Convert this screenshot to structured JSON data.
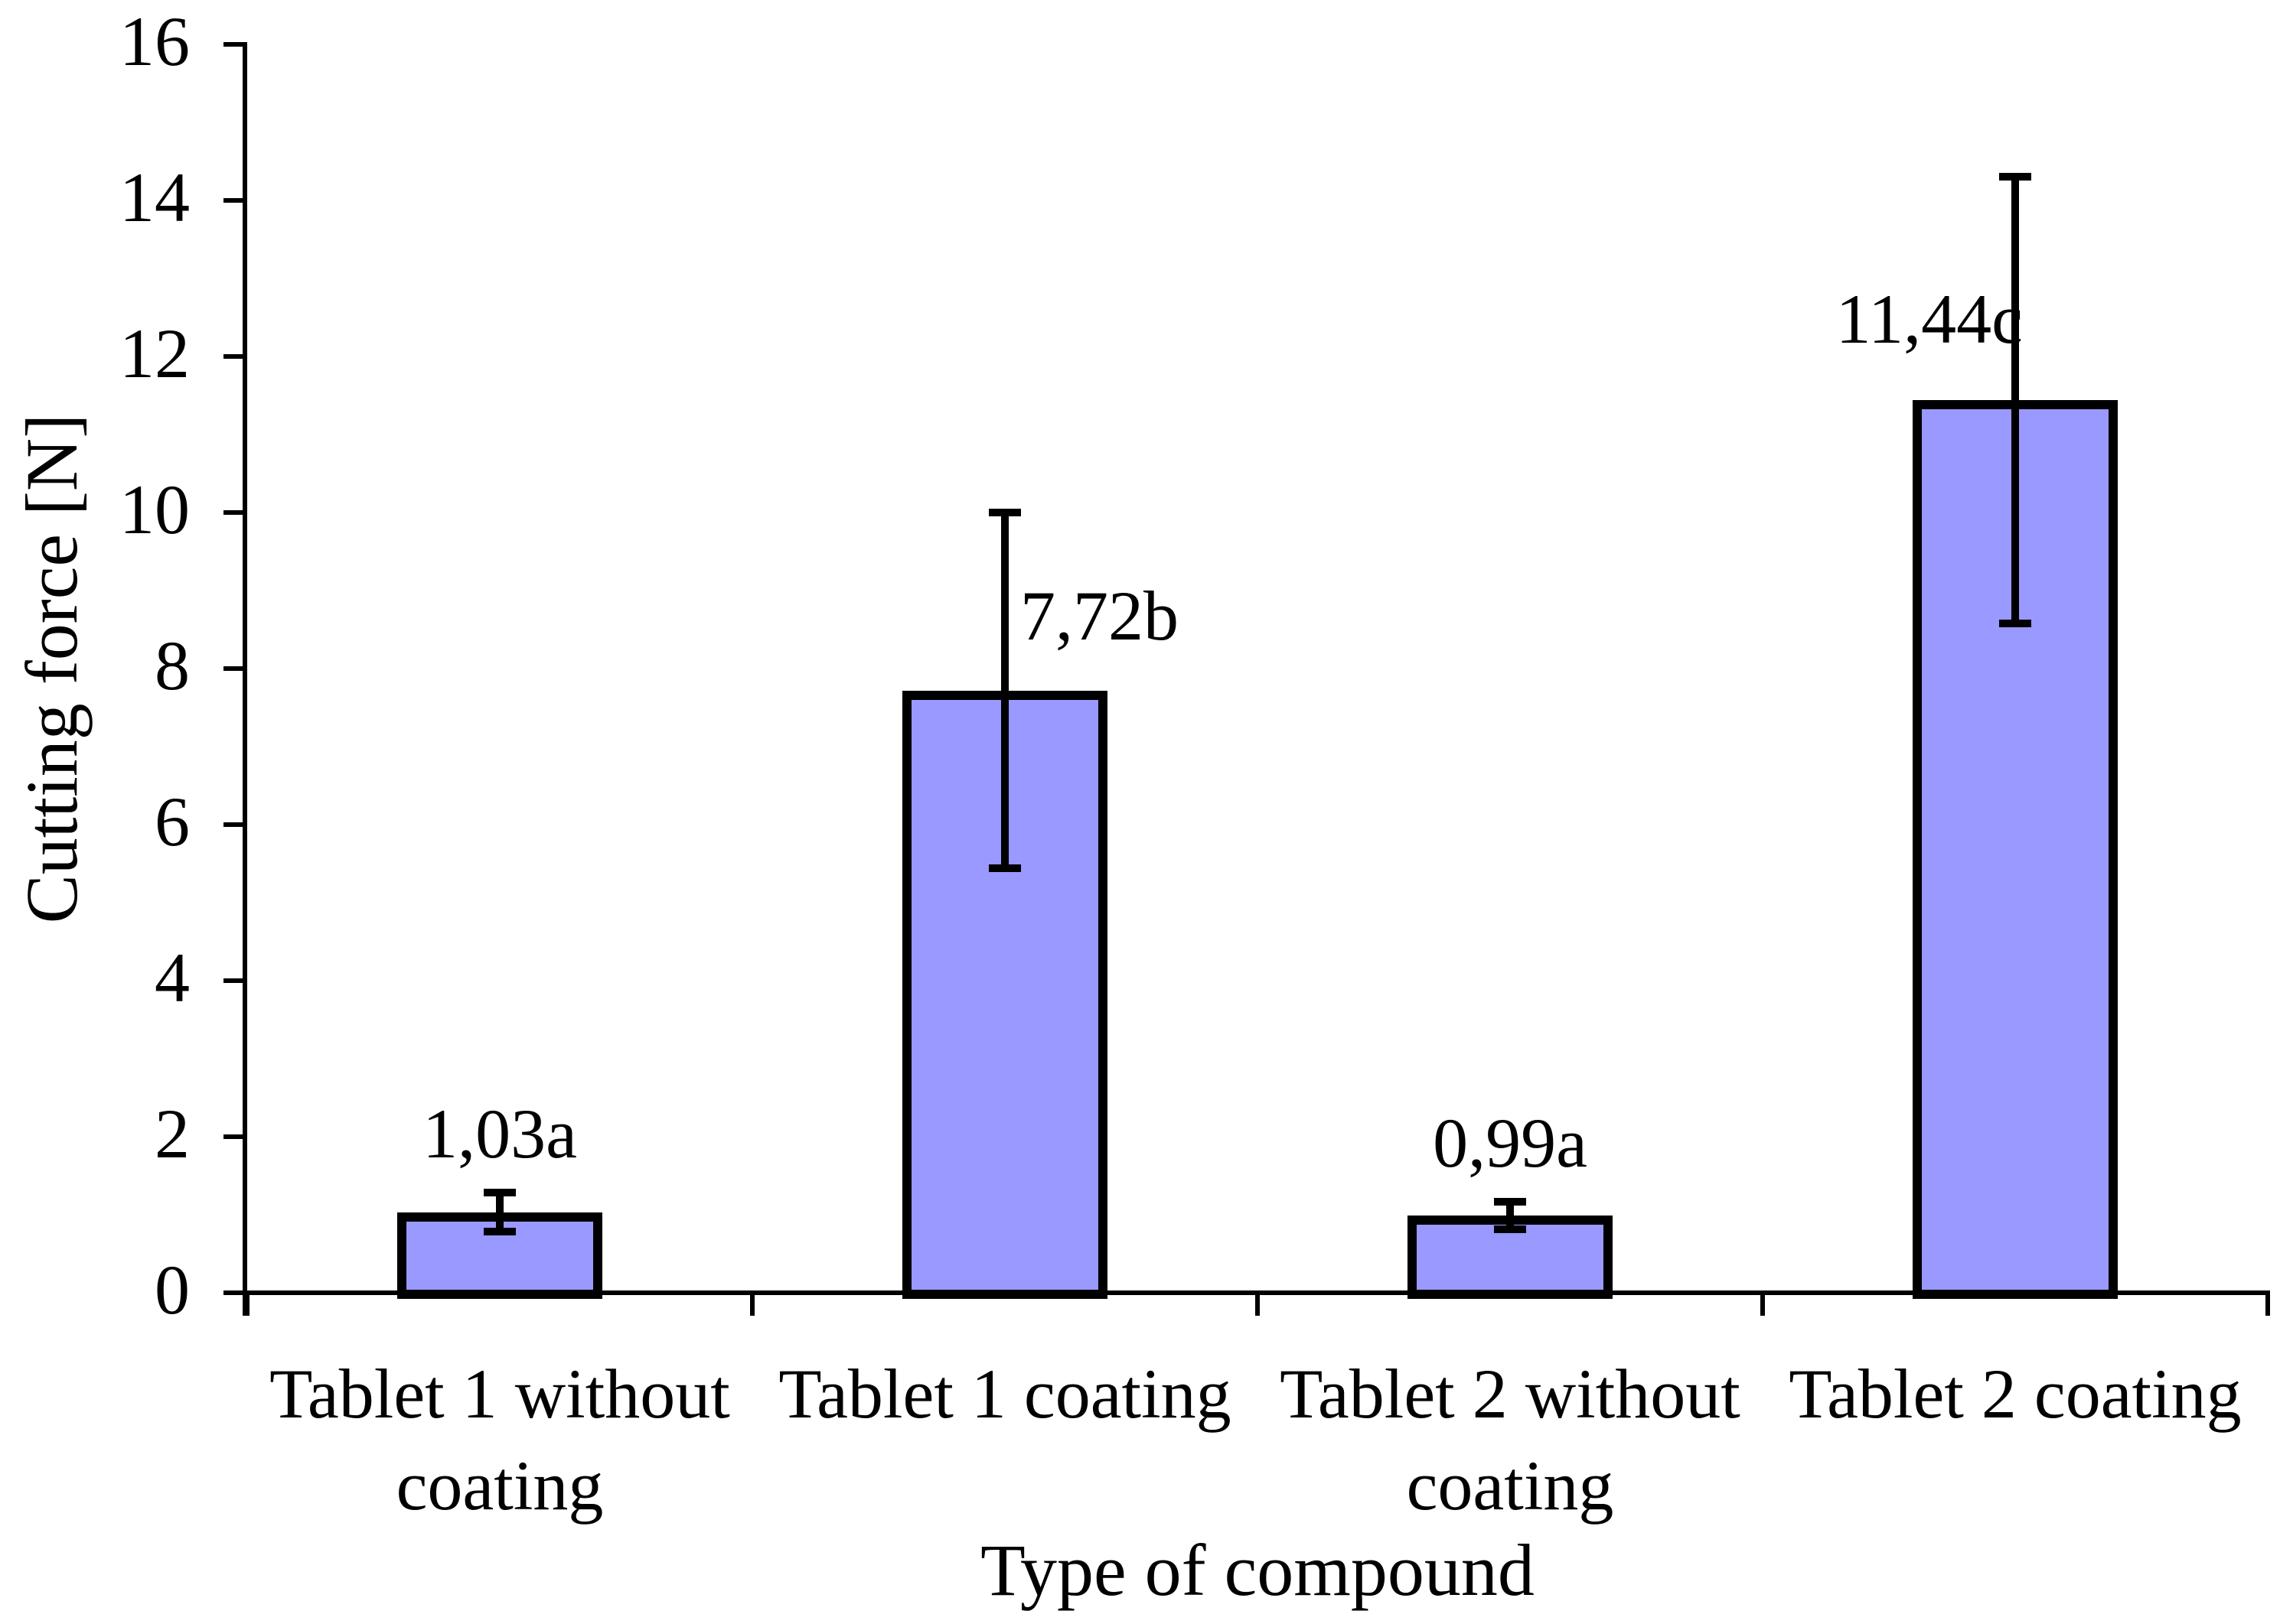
{
  "chart_data": {
    "type": "bar",
    "title": "",
    "xlabel": "Type of compound",
    "ylabel": "Cutting force [N]",
    "ylim": [
      0,
      16
    ],
    "ytick_step": 2,
    "ytick_labels": [
      "0",
      "2",
      "4",
      "6",
      "8",
      "10",
      "12",
      "14",
      "16"
    ],
    "grid": false,
    "legend": "none",
    "categories": [
      "Tablet 1 without coating",
      "Tablet 1 coating",
      "Tablet 2 without coating",
      "Tablet 2 coating"
    ],
    "category_lines": [
      [
        "Tablet 1 without",
        "coating"
      ],
      [
        "Tablet 1 coating"
      ],
      [
        "Tablet 2 without",
        "coating"
      ],
      [
        "Tablet 2 coating"
      ]
    ],
    "values": [
      1.03,
      7.72,
      0.99,
      11.44
    ],
    "value_labels": [
      "1,03a",
      "7,72b",
      "0,99a",
      "11,44c"
    ],
    "errors": [
      0.25,
      2.28,
      0.18,
      2.86
    ],
    "colors": {
      "bar_fill": "#9999FF",
      "bar_border": "#000000",
      "axis": "#000000",
      "text": "#000000",
      "background": "#FFFFFF"
    }
  }
}
